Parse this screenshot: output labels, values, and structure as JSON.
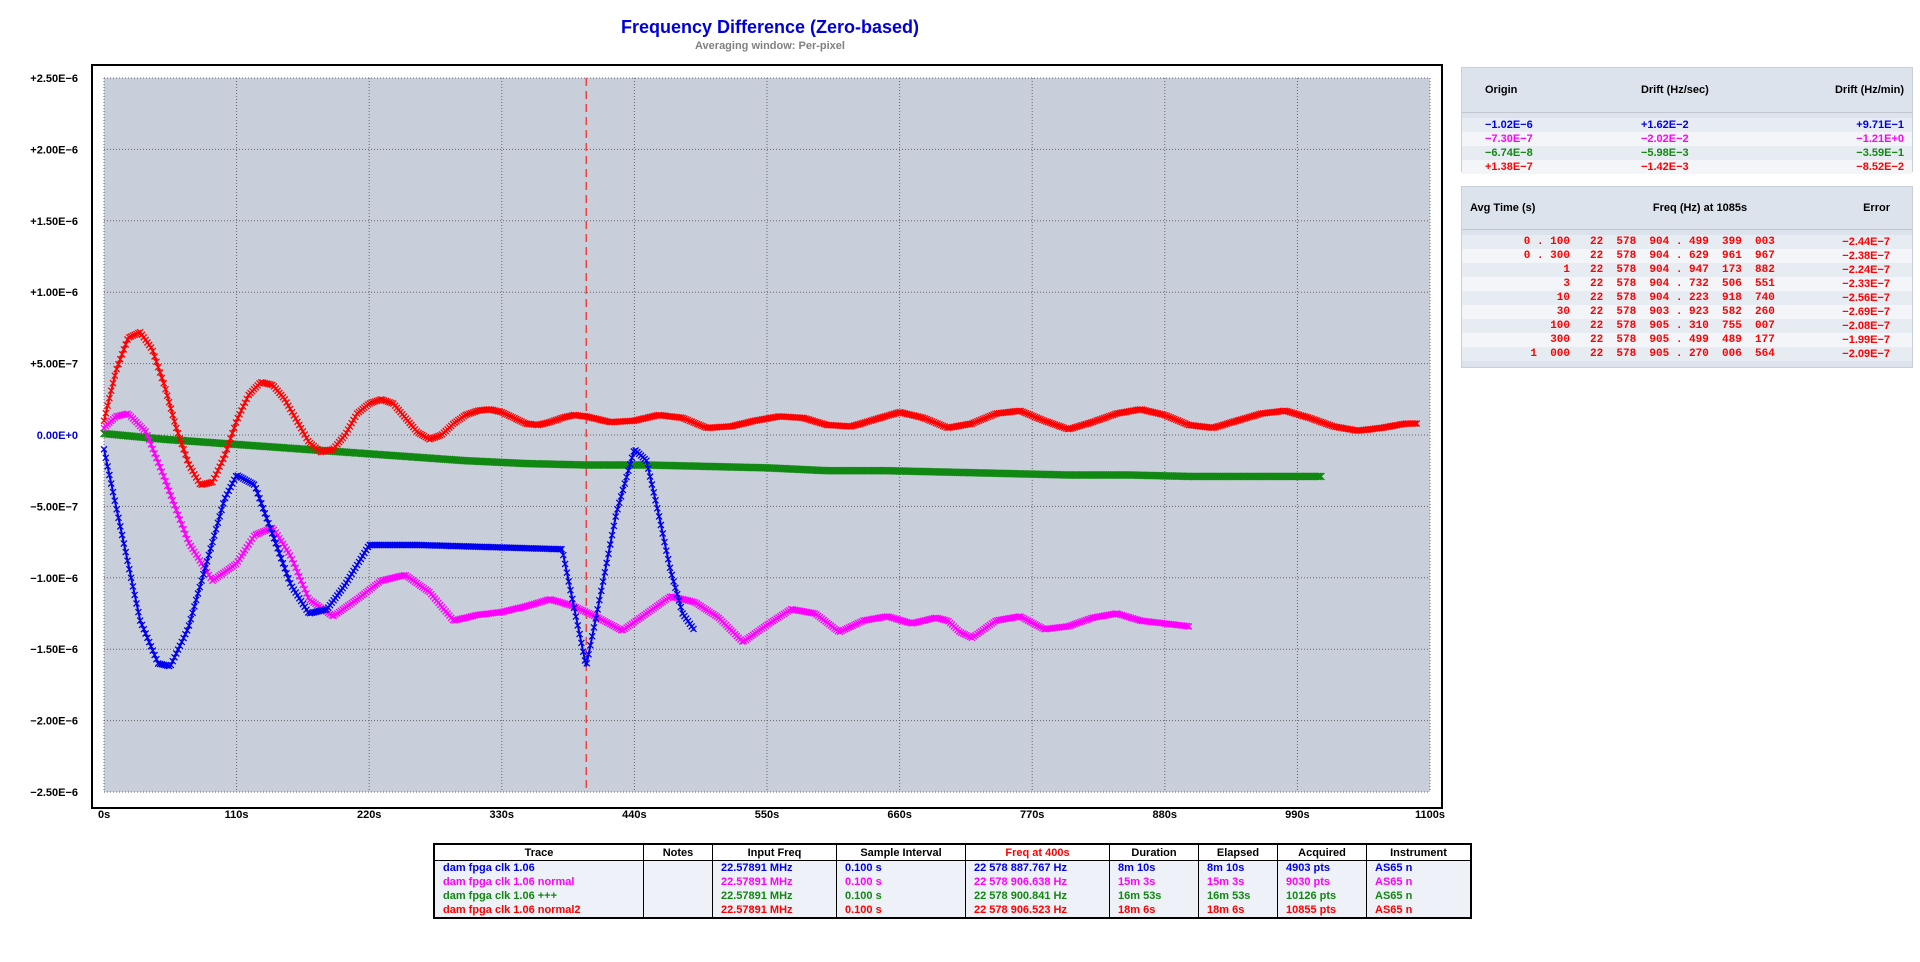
{
  "title": "Frequency Difference (Zero-based)",
  "subtitle": "Averaging window: Per-pixel",
  "colors": {
    "blue": "#0000ee",
    "magenta": "#ff00ff",
    "green": "#118811",
    "red": "#ff0000",
    "plot_bg": "#c8ceda"
  },
  "chart_data": {
    "type": "line",
    "xlim": [
      0,
      1100
    ],
    "ylim": [
      -2.5e-06,
      2.5e-06
    ],
    "x_ticks": [
      0,
      110,
      220,
      330,
      440,
      550,
      660,
      770,
      880,
      990,
      1100
    ],
    "x_tick_labels": [
      "0s",
      "110s",
      "220s",
      "330s",
      "440s",
      "550s",
      "660s",
      "770s",
      "880s",
      "990s",
      "1100s"
    ],
    "y_ticks": [
      2.5e-06,
      2e-06,
      1.5e-06,
      1e-06,
      5e-07,
      0,
      -5e-07,
      -1e-06,
      -1.5e-06,
      -2e-06,
      -2.5e-06
    ],
    "y_tick_labels": [
      "+2.50E−6",
      "+2.00E−6",
      "+1.50E−6",
      "+1.00E−6",
      "+5.00E−7",
      "0.00E+0",
      "−5.00E−7",
      "−1.00E−6",
      "−1.50E−6",
      "−2.00E−6",
      "−2.50E−6"
    ],
    "marker_x": 400,
    "grid": true,
    "series": [
      {
        "name": "dam fpga clk 1.06",
        "color": "#0000ee",
        "x": [
          0,
          15,
          30,
          45,
          55,
          70,
          85,
          100,
          110,
          125,
          140,
          155,
          170,
          185,
          200,
          220,
          260,
          300,
          340,
          380,
          400,
          410,
          425,
          440,
          450,
          460,
          470,
          480,
          490
        ],
        "y": [
          -1e-07,
          -7e-07,
          -1.3e-06,
          -1.6e-06,
          -1.62e-06,
          -1.35e-06,
          -9e-07,
          -4.5e-07,
          -2.8e-07,
          -3.5e-07,
          -7e-07,
          -1.05e-06,
          -1.25e-06,
          -1.22e-06,
          -1.05e-06,
          -7.7e-07,
          -7.7e-07,
          -7.8e-07,
          -7.9e-07,
          -8e-07,
          -1.62e-06,
          -1.2e-06,
          -5.5e-07,
          -1e-07,
          -1.8e-07,
          -5.5e-07,
          -9.5e-07,
          -1.25e-06,
          -1.37e-06
        ]
      },
      {
        "name": "dam fpga clk 1.06 normal",
        "color": "#ff00ff",
        "x": [
          0,
          10,
          20,
          35,
          50,
          70,
          90,
          110,
          125,
          140,
          155,
          170,
          190,
          210,
          230,
          250,
          270,
          290,
          310,
          330,
          350,
          370,
          390,
          410,
          430,
          450,
          470,
          490,
          510,
          530,
          550,
          570,
          590,
          610,
          630,
          650,
          670,
          690,
          700,
          710,
          720,
          740,
          760,
          780,
          800,
          820,
          840,
          860,
          880,
          900
        ],
        "y": [
          5e-08,
          1.3e-07,
          1.5e-07,
          2e-08,
          -3e-07,
          -7.5e-07,
          -1.02e-06,
          -9e-07,
          -7e-07,
          -6.5e-07,
          -8.5e-07,
          -1.15e-06,
          -1.27e-06,
          -1.15e-06,
          -1.02e-06,
          -9.8e-07,
          -1.1e-06,
          -1.3e-06,
          -1.26e-06,
          -1.24e-06,
          -1.2e-06,
          -1.15e-06,
          -1.2e-06,
          -1.28e-06,
          -1.37e-06,
          -1.25e-06,
          -1.13e-06,
          -1.17e-06,
          -1.28e-06,
          -1.45e-06,
          -1.33e-06,
          -1.22e-06,
          -1.25e-06,
          -1.38e-06,
          -1.3e-06,
          -1.27e-06,
          -1.32e-06,
          -1.28e-06,
          -1.3e-06,
          -1.38e-06,
          -1.42e-06,
          -1.3e-06,
          -1.27e-06,
          -1.36e-06,
          -1.34e-06,
          -1.28e-06,
          -1.25e-06,
          -1.3e-06,
          -1.32e-06,
          -1.34e-06
        ]
      },
      {
        "name": "dam fpga clk 1.06 +++",
        "color": "#118811",
        "x": [
          0,
          50,
          100,
          150,
          200,
          250,
          300,
          350,
          400,
          450,
          500,
          550,
          600,
          650,
          700,
          750,
          800,
          850,
          900,
          950,
          1010
        ],
        "y": [
          1e-08,
          -3e-08,
          -6e-08,
          -9e-08,
          -1.2e-07,
          -1.5e-07,
          -1.8e-07,
          -2e-07,
          -2.1e-07,
          -2.1e-07,
          -2.2e-07,
          -2.3e-07,
          -2.5e-07,
          -2.5e-07,
          -2.6e-07,
          -2.7e-07,
          -2.8e-07,
          -2.8e-07,
          -2.9e-07,
          -2.9e-07,
          -2.9e-07
        ]
      },
      {
        "name": "dam fpga clk 1.06 normal2",
        "color": "#ff0000",
        "x": [
          0,
          10,
          20,
          30,
          40,
          50,
          60,
          70,
          80,
          90,
          100,
          110,
          120,
          130,
          140,
          150,
          160,
          170,
          180,
          190,
          200,
          210,
          220,
          230,
          240,
          250,
          260,
          270,
          280,
          290,
          300,
          310,
          320,
          330,
          340,
          350,
          360,
          370,
          380,
          390,
          400,
          420,
          440,
          460,
          480,
          500,
          520,
          540,
          560,
          580,
          600,
          620,
          640,
          660,
          680,
          700,
          720,
          740,
          760,
          780,
          800,
          820,
          840,
          860,
          880,
          900,
          920,
          940,
          960,
          980,
          1000,
          1020,
          1040,
          1060,
          1080,
          1090
        ],
        "y": [
          1e-07,
          4.5e-07,
          6.8e-07,
          7.2e-07,
          6e-07,
          3.5e-07,
          5e-08,
          -2e-07,
          -3.5e-07,
          -3.3e-07,
          -1.5e-07,
          1e-07,
          2.8e-07,
          3.7e-07,
          3.5e-07,
          2.5e-07,
          1e-07,
          -5e-08,
          -1.2e-07,
          -1e-07,
          0.0,
          1.5e-07,
          2.2e-07,
          2.5e-07,
          2.2e-07,
          1.2e-07,
          2e-08,
          -3e-08,
          0.0,
          8e-08,
          1.4e-07,
          1.7e-07,
          1.8e-07,
          1.6e-07,
          1.2e-07,
          8e-08,
          7e-08,
          9e-08,
          1.2e-07,
          1.4e-07,
          1.3e-07,
          9e-08,
          1e-07,
          1.4e-07,
          1.2e-07,
          5e-08,
          6e-08,
          1e-07,
          1.3e-07,
          1.2e-07,
          7e-08,
          6e-08,
          1.1e-07,
          1.6e-07,
          1.2e-07,
          5e-08,
          8e-08,
          1.5e-07,
          1.7e-07,
          1e-07,
          4e-08,
          9e-08,
          1.5e-07,
          1.8e-07,
          1.4e-07,
          7e-08,
          5e-08,
          1e-07,
          1.5e-07,
          1.7e-07,
          1.2e-07,
          6e-08,
          3e-08,
          5e-08,
          8e-08,
          8e-08
        ]
      }
    ]
  },
  "drift_panel": {
    "headers": [
      "Origin",
      "Drift (Hz/sec)",
      "Drift (Hz/min)"
    ],
    "rows": [
      {
        "origin": "−1.02E−6",
        "hz_sec": "+1.62E−2",
        "hz_min": "+9.71E−1",
        "color": "#0000ee"
      },
      {
        "origin": "−7.30E−7",
        "hz_sec": "−2.02E−2",
        "hz_min": "−1.21E+0",
        "color": "#ff00ff"
      },
      {
        "origin": "−6.74E−8",
        "hz_sec": "−5.98E−3",
        "hz_min": "−3.59E−1",
        "color": "#118811"
      },
      {
        "origin": "+1.38E−7",
        "hz_sec": "−1.42E−3",
        "hz_min": "−8.52E−2",
        "color": "#ff0000"
      }
    ]
  },
  "avg_panel": {
    "headers": [
      "Avg Time (s)",
      "Freq (Hz) at 1085s",
      "Error"
    ],
    "color": "#ff0000",
    "rows": [
      {
        "avg": "0 . 100",
        "freq": "22  578  904 . 499  399  003",
        "err": "−2.44E−7"
      },
      {
        "avg": "0 . 300",
        "freq": "22  578  904 . 629  961  967",
        "err": "−2.38E−7"
      },
      {
        "avg": "1",
        "freq": "22  578  904 . 947  173  882",
        "err": "−2.24E−7"
      },
      {
        "avg": "3",
        "freq": "22  578  904 . 732  506  551",
        "err": "−2.33E−7"
      },
      {
        "avg": "10",
        "freq": "22  578  904 . 223  918  740",
        "err": "−2.56E−7"
      },
      {
        "avg": "30",
        "freq": "22  578  903 . 923  582  260",
        "err": "−2.69E−7"
      },
      {
        "avg": "100",
        "freq": "22  578  905 . 310  755  007",
        "err": "−2.08E−7"
      },
      {
        "avg": "300",
        "freq": "22  578  905 . 499  489  177",
        "err": "−1.99E−7"
      },
      {
        "avg": "1  000",
        "freq": "22  578  905 . 270  006  564",
        "err": "−2.09E−7"
      }
    ]
  },
  "trace_table": {
    "headers": [
      "Trace",
      "Notes",
      "Input Freq",
      "Sample Interval",
      "Freq at 400s",
      "Duration",
      "Elapsed",
      "Acquired",
      "Instrument"
    ],
    "rows": [
      {
        "trace": "dam fpga clk 1.06",
        "notes": "",
        "input": "22.57891 MHz",
        "interval": "0.100 s",
        "freq": "22 578 887.767 Hz",
        "duration": "8m 10s",
        "elapsed": "8m 10s",
        "acquired": "4903 pts",
        "instrument": "AS65 n",
        "color": "#0000ee"
      },
      {
        "trace": "dam fpga clk 1.06 normal",
        "notes": "",
        "input": "22.57891 MHz",
        "interval": "0.100 s",
        "freq": "22 578 906.638 Hz",
        "duration": "15m 3s",
        "elapsed": "15m 3s",
        "acquired": "9030 pts",
        "instrument": "AS65 n",
        "color": "#ff00ff"
      },
      {
        "trace": "dam fpga clk 1.06 +++",
        "notes": "",
        "input": "22.57891 MHz",
        "interval": "0.100 s",
        "freq": "22 578 900.841 Hz",
        "duration": "16m 53s",
        "elapsed": "16m 53s",
        "acquired": "10126 pts",
        "instrument": "AS65 n",
        "color": "#118811"
      },
      {
        "trace": "dam fpga clk 1.06 normal2",
        "notes": "",
        "input": "22.57891 MHz",
        "interval": "0.100 s",
        "freq": "22 578 906.523 Hz",
        "duration": "18m 6s",
        "elapsed": "18m 6s",
        "acquired": "10855 pts",
        "instrument": "AS65 n",
        "color": "#ff0000"
      }
    ]
  }
}
